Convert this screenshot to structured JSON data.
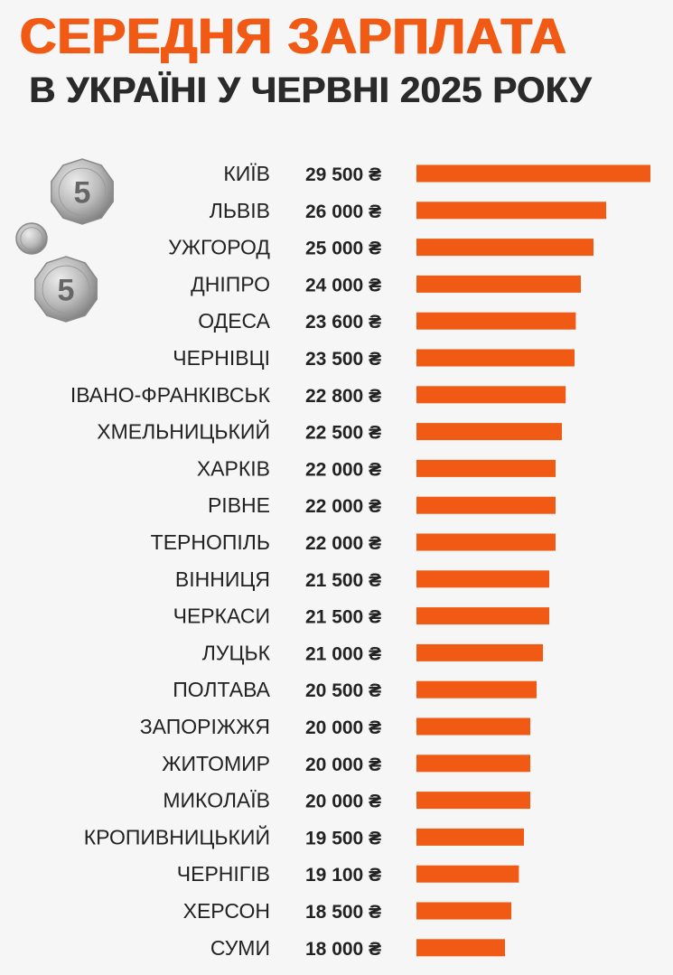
{
  "header": {
    "title": "СЕРЕДНЯ ЗАРПЛАТА",
    "subtitle": "В УКРАЇНІ У ЧЕРВНІ 2025 РОКУ"
  },
  "colors": {
    "accent": "#f05a14",
    "text": "#222222",
    "background": "#f6f6f6"
  },
  "coins": [
    {
      "icon": "hryvnia-5-coin-icon",
      "numeral": "5"
    },
    {
      "icon": "hryvnia-1-coin-icon",
      "numeral": ""
    },
    {
      "icon": "hryvnia-5-coin-icon",
      "numeral": "5"
    }
  ],
  "chart_data": {
    "type": "bar",
    "orientation": "horizontal",
    "currency_symbol": "₴",
    "categories": [
      "КИЇВ",
      "ЛЬВІВ",
      "УЖГОРОД",
      "ДНІПРО",
      "ОДЕСА",
      "ЧЕРНІВЦІ",
      "ІВАНО-ФРАНКІВСЬК",
      "ХМЕЛЬНИЦЬКИЙ",
      "ХАРКІВ",
      "РІВНЕ",
      "ТЕРНОПІЛЬ",
      "ВІННИЦЯ",
      "ЧЕРКАСИ",
      "ЛУЦЬК",
      "ПОЛТАВА",
      "ЗАПОРІЖЖЯ",
      "ЖИТОМИР",
      "МИКОЛАЇВ",
      "КРОПИВНИЦЬКИЙ",
      "ЧЕРНІГІВ",
      "ХЕРСОН",
      "СУМИ"
    ],
    "values": [
      29500,
      26000,
      25000,
      24000,
      23600,
      23500,
      22800,
      22500,
      22000,
      22000,
      22000,
      21500,
      21500,
      21000,
      20500,
      20000,
      20000,
      20000,
      19500,
      19100,
      18500,
      18000
    ],
    "labels": [
      "29 500 ₴",
      "26 000 ₴",
      "25 000 ₴",
      "24 000 ₴",
      "23 600 ₴",
      "23 500 ₴",
      "22 800 ₴",
      "22 500 ₴",
      "22 000 ₴",
      "22 000 ₴",
      "22 000 ₴",
      "21 500 ₴",
      "21 500 ₴",
      "21 000 ₴",
      "20 500 ₴",
      "20 000 ₴",
      "20 000 ₴",
      "20 000 ₴",
      "19 500 ₴",
      "19 100 ₴",
      "18 500 ₴",
      "18 000 ₴"
    ],
    "xlim": [
      11000,
      29500
    ],
    "grid": false,
    "legend": "none"
  }
}
